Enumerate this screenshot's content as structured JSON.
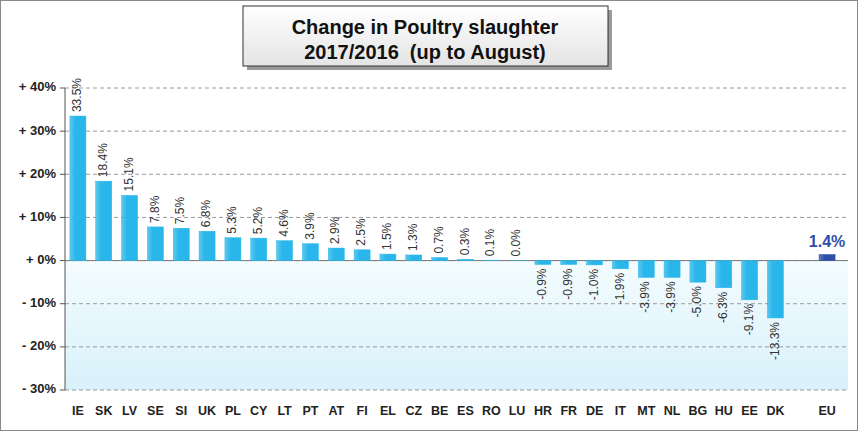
{
  "chart_data": {
    "type": "bar",
    "title": "Change in Poultry slaughter",
    "subtitle": "2017/2016  (up to August)",
    "categories": [
      "IE",
      "SK",
      "LV",
      "SE",
      "SI",
      "UK",
      "PL",
      "CY",
      "LT",
      "PT",
      "AT",
      "FI",
      "EL",
      "CZ",
      "BE",
      "ES",
      "RO",
      "LU",
      "HR",
      "FR",
      "DE",
      "IT",
      "MT",
      "NL",
      "BG",
      "HU",
      "EE",
      "DK",
      null,
      "EU"
    ],
    "values": [
      33.5,
      18.4,
      15.1,
      7.8,
      7.5,
      6.8,
      5.3,
      5.2,
      4.6,
      3.9,
      2.9,
      2.5,
      1.5,
      1.3,
      0.7,
      0.3,
      0.1,
      0.0,
      -0.9,
      -0.9,
      -1.0,
      -1.9,
      -3.9,
      -3.9,
      -5.0,
      -6.3,
      -9.1,
      -13.3,
      null,
      1.4
    ],
    "value_labels": [
      "33.5%",
      "18.4%",
      "15.1%",
      "7.8%",
      "7.5%",
      "6.8%",
      "5.3%",
      "5.2%",
      "4.6%",
      "3.9%",
      "2.9%",
      "2.5%",
      "1.5%",
      "1.3%",
      "0.7%",
      "0.3%",
      "0.1%",
      "0.0%",
      "-0.9%",
      "-0.9%",
      "-1.0%",
      "-1.9%",
      "-3.9%",
      "-3.9%",
      "-5.0%",
      "-6.3%",
      "-9.1%",
      "-13.3%",
      null,
      "1.4%"
    ],
    "colors": [
      "#29b6ea",
      "#29b6ea",
      "#29b6ea",
      "#29b6ea",
      "#29b6ea",
      "#29b6ea",
      "#29b6ea",
      "#29b6ea",
      "#29b6ea",
      "#29b6ea",
      "#29b6ea",
      "#29b6ea",
      "#29b6ea",
      "#29b6ea",
      "#29b6ea",
      "#29b6ea",
      "#29b6ea",
      "#29b6ea",
      "#29b6ea",
      "#29b6ea",
      "#29b6ea",
      "#29b6ea",
      "#29b6ea",
      "#29b6ea",
      "#29b6ea",
      "#29b6ea",
      "#29b6ea",
      "#29b6ea",
      null,
      "#2e4fa8"
    ],
    "ylim": [
      -30,
      40
    ],
    "yticks": [
      {
        "value": -30,
        "label": "- 30%"
      },
      {
        "value": -20,
        "label": "- 20%"
      },
      {
        "value": -10,
        "label": "- 10%"
      },
      {
        "value": 0,
        "label": "+ 0%"
      },
      {
        "value": 10,
        "label": "+ 10%"
      },
      {
        "value": 20,
        "label": "+ 20%"
      },
      {
        "value": 30,
        "label": "+ 30%"
      },
      {
        "value": 40,
        "label": "+ 40%"
      }
    ],
    "grid": true,
    "data_labels": true
  }
}
